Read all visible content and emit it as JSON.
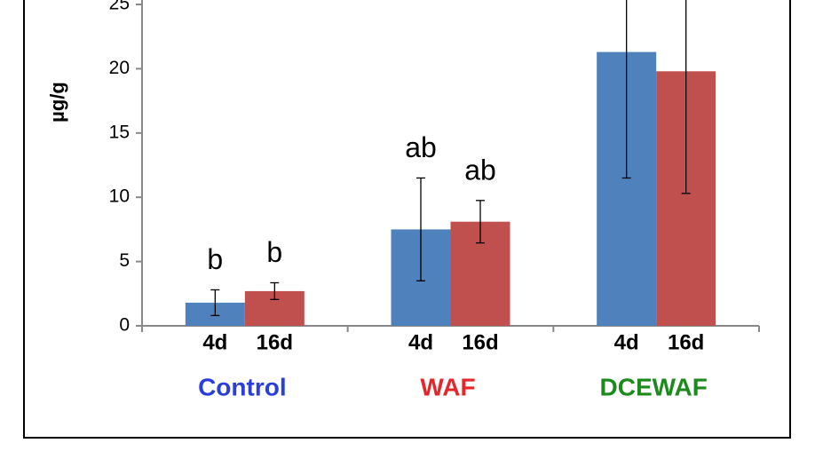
{
  "chart_data": {
    "type": "bar",
    "y_label": "µg/g",
    "categories": [
      "Control",
      "WAF",
      "DCEWAF"
    ],
    "category_colors": [
      "#2b3fd8",
      "#e5262a",
      "#1c8a1c"
    ],
    "series": [
      {
        "name": "4d",
        "color": "#4f81bd",
        "values": [
          1.8,
          7.5,
          21.3
        ],
        "errors": [
          1.0,
          4.0,
          9.8
        ],
        "letters": [
          "b",
          "ab",
          null
        ]
      },
      {
        "name": "16d",
        "color": "#c0504d",
        "values": [
          2.7,
          8.1,
          19.8
        ],
        "errors": [
          0.65,
          1.65,
          9.5
        ],
        "letters": [
          "b",
          "ab",
          null
        ]
      }
    ],
    "ylim": [
      0,
      25
    ],
    "yticks": [
      0,
      5,
      10,
      15,
      20,
      25
    ]
  }
}
